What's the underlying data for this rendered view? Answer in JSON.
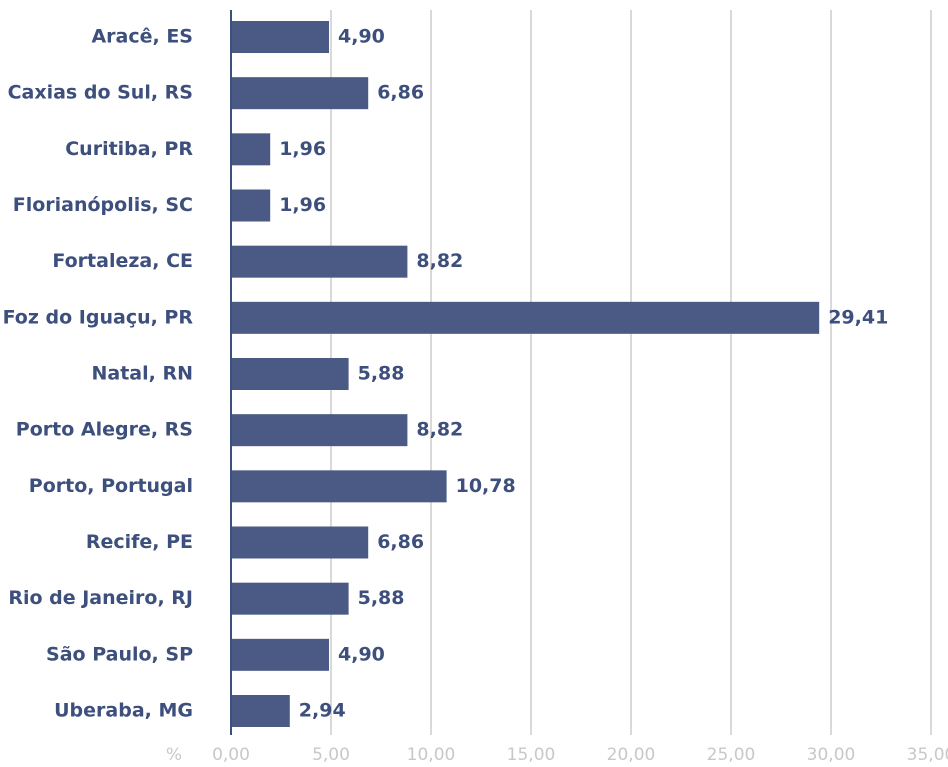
{
  "chart_data": {
    "type": "barh",
    "categories": [
      "Aracê, ES",
      "Caxias do Sul, RS",
      "Curitiba, PR",
      "Florianópolis, SC",
      "Fortaleza, CE",
      "Foz do Iguaçu, PR",
      "Natal, RN",
      "Porto Alegre, RS",
      "Porto, Portugal",
      "Recife, PE",
      "Rio de Janeiro, RJ",
      "São Paulo, SP",
      "Uberaba, MG"
    ],
    "values": [
      4.9,
      6.86,
      1.96,
      1.96,
      8.82,
      29.41,
      5.88,
      8.82,
      10.78,
      6.86,
      5.88,
      4.9,
      2.94
    ],
    "value_labels": [
      "4,90",
      "6,86",
      "1,96",
      "1,96",
      "8,82",
      "29,41",
      "5,88",
      "8,82",
      "10,78",
      "6,86",
      "5,88",
      "4,90",
      "2,94"
    ],
    "color": "#4a5a85",
    "x_label": "%",
    "xlim": [
      0,
      35
    ],
    "xticks": [
      {
        "value": 0,
        "label": "0,00"
      },
      {
        "value": 5,
        "label": "5,00"
      },
      {
        "value": 10,
        "label": "10,00"
      },
      {
        "value": 15,
        "label": "15,00"
      },
      {
        "value": 20,
        "label": "20,00"
      },
      {
        "value": 25,
        "label": "25,00"
      },
      {
        "value": 30,
        "label": "30,00"
      },
      {
        "value": 35,
        "label": "35,00"
      }
    ],
    "grid": true
  }
}
